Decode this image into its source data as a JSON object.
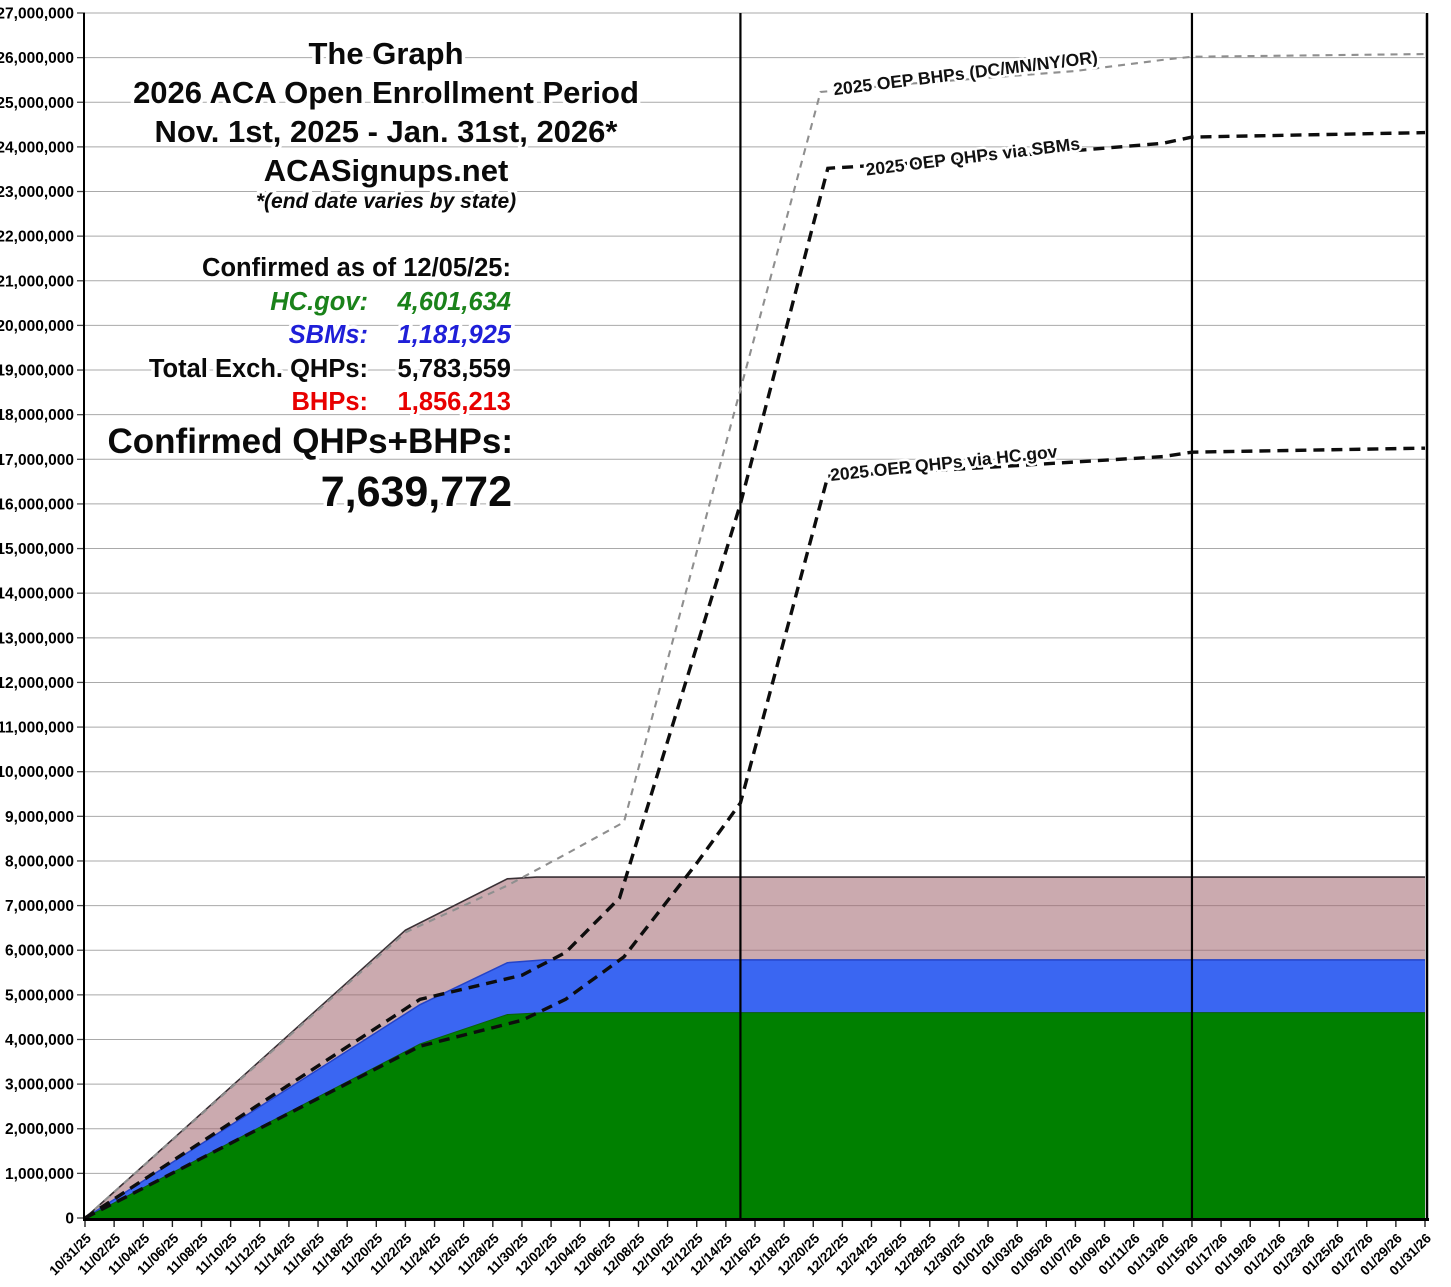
{
  "annotations": {
    "title_block": {
      "line1": "The Graph",
      "line2": "2026 ACA Open Enrollment Period",
      "line3": "Nov. 1st, 2025 - Jan. 31st, 2026*",
      "line4": "ACASignups.net",
      "line5": "*(end date varies by state)"
    },
    "confirmed_block": {
      "heading": "Confirmed as of 12/05/25:",
      "rows": [
        {
          "label": "HC.gov:",
          "value": "4,601,634",
          "color": "#1a821a"
        },
        {
          "label": "SBMs:",
          "value": "1,181,925",
          "color": "#1f1fd8"
        },
        {
          "label": "Total Exch. QHPs:",
          "value": "5,783,559",
          "color": "#0a0a0a"
        },
        {
          "label": "BHPs:",
          "value": "1,856,213",
          "color": "#e80000"
        }
      ],
      "total_heading": "Confirmed QHPs+BHPs:",
      "grand_total": "7,639,772"
    }
  },
  "chart_data": {
    "type": "area",
    "title": "The Graph — 2026 ACA Open Enrollment Period (Nov. 1st, 2025 - Jan. 31st, 2026)",
    "source": "ACASignups.net",
    "xlabel": "",
    "ylabel": "",
    "x_unit": "days since 10/31/25",
    "x_range_days": [
      0,
      92
    ],
    "ylim": [
      0,
      27000000
    ],
    "y_tick_step": 1000000,
    "grid": "horizontal",
    "y_tick_labels": [
      "0",
      "1,000,000",
      "2,000,000",
      "3,000,000",
      "4,000,000",
      "5,000,000",
      "6,000,000",
      "7,000,000",
      "8,000,000",
      "9,000,000",
      "10,000,000",
      "11,000,000",
      "12,000,000",
      "13,000,000",
      "14,000,000",
      "15,000,000",
      "16,000,000",
      "17,000,000",
      "18,000,000",
      "19,000,000",
      "20,000,000",
      "21,000,000",
      "22,000,000",
      "23,000,000",
      "24,000,000",
      "25,000,000",
      "26,000,000",
      "27,000,000"
    ],
    "x_tick_labels": [
      "10/31/25",
      "11/02/25",
      "11/04/25",
      "11/06/25",
      "11/08/25",
      "11/10/25",
      "11/12/25",
      "11/14/25",
      "11/16/25",
      "11/18/25",
      "11/20/25",
      "11/22/25",
      "11/24/25",
      "11/26/25",
      "11/28/25",
      "11/30/25",
      "12/02/25",
      "12/04/25",
      "12/06/25",
      "12/08/25",
      "12/10/25",
      "12/12/25",
      "12/14/25",
      "12/16/25",
      "12/18/25",
      "12/20/25",
      "12/22/25",
      "12/24/25",
      "12/26/25",
      "12/28/25",
      "12/30/25",
      "01/01/26",
      "01/03/26",
      "01/05/26",
      "01/07/26",
      "01/09/26",
      "01/11/26",
      "01/13/26",
      "01/15/26",
      "01/17/26",
      "01/19/26",
      "01/21/26",
      "01/23/26",
      "01/25/26",
      "01/27/26",
      "01/29/26",
      "01/31/26"
    ],
    "vertical_markers": [
      {
        "day": 45,
        "note": "between 12/14/25 and 12/16/25"
      },
      {
        "day": 76,
        "note": "at 01/15/26"
      }
    ],
    "areas": [
      {
        "name": "Confirmed QHPs+BHPs (BHPs band)",
        "fill": "rgba(160,100,110,0.55)",
        "edge": "#3a3136",
        "edge_width": 1.6,
        "points": [
          [
            0,
            0
          ],
          [
            22,
            6450000
          ],
          [
            29,
            7600000
          ],
          [
            31,
            7639772
          ],
          [
            92,
            7639772
          ]
        ]
      },
      {
        "name": "Total Exchange QHPs (SBMs band)",
        "fill": "#3a66f2",
        "edge": "#2443c8",
        "edge_width": 1.5,
        "points": [
          [
            0,
            0
          ],
          [
            23,
            4780000
          ],
          [
            29,
            5720000
          ],
          [
            31.5,
            5783559
          ],
          [
            92,
            5783559
          ]
        ]
      },
      {
        "name": "HC.gov QHPs",
        "fill": "#008000",
        "edge": "#0b5d0b",
        "edge_width": 1,
        "points": [
          [
            0,
            0
          ],
          [
            23,
            3900000
          ],
          [
            29,
            4560000
          ],
          [
            31.5,
            4601634
          ],
          [
            92,
            4601634
          ]
        ]
      }
    ],
    "lines": [
      {
        "name": "2025 OEP BHPs (DC/MN/NY/OR)",
        "color": "#8f8f8f",
        "width": 2.1,
        "dash": "7 6",
        "label": {
          "text": "2025 OEP BHPs (DC/MN/NY/OR)",
          "day": 60.5,
          "value": 25520000,
          "rot": -7
        },
        "points": [
          [
            0,
            0
          ],
          [
            22,
            6400000
          ],
          [
            29,
            7450000
          ],
          [
            33,
            8150000
          ],
          [
            37,
            8870000
          ],
          [
            50.5,
            25230000
          ],
          [
            56,
            25400000
          ],
          [
            68,
            25700000
          ],
          [
            74,
            25950000
          ],
          [
            76,
            26020000
          ],
          [
            92,
            26080000
          ]
        ]
      },
      {
        "name": "2025 OEP QHPs via SBMs",
        "color": "#0d0d0d",
        "width": 3.4,
        "dash": "11 7",
        "label": {
          "text": "2025 OEP QHPs via SBMs",
          "day": 61,
          "value": 23650000,
          "rot": -7
        },
        "points": [
          [
            0,
            0
          ],
          [
            23,
            4900000
          ],
          [
            30,
            5440000
          ],
          [
            33,
            5950000
          ],
          [
            36.7,
            7170000
          ],
          [
            45,
            16000000
          ],
          [
            51,
            23520000
          ],
          [
            60,
            23700000
          ],
          [
            74,
            24080000
          ],
          [
            76,
            24220000
          ],
          [
            92,
            24320000
          ]
        ]
      },
      {
        "name": "2025 OEP QHPs via HC.gov",
        "color": "#0d0d0d",
        "width": 3.4,
        "dash": "11 7",
        "label": {
          "text": "2025 OEP QHPs via HC.gov",
          "day": 59,
          "value": 16780000,
          "rot": -6
        },
        "points": [
          [
            0,
            0
          ],
          [
            23,
            3850000
          ],
          [
            30,
            4430000
          ],
          [
            33,
            4900000
          ],
          [
            37,
            5850000
          ],
          [
            42,
            7950000
          ],
          [
            45,
            9300000
          ],
          [
            51,
            16620000
          ],
          [
            60,
            16780000
          ],
          [
            74,
            17060000
          ],
          [
            76,
            17160000
          ],
          [
            92,
            17250000
          ]
        ]
      }
    ]
  }
}
